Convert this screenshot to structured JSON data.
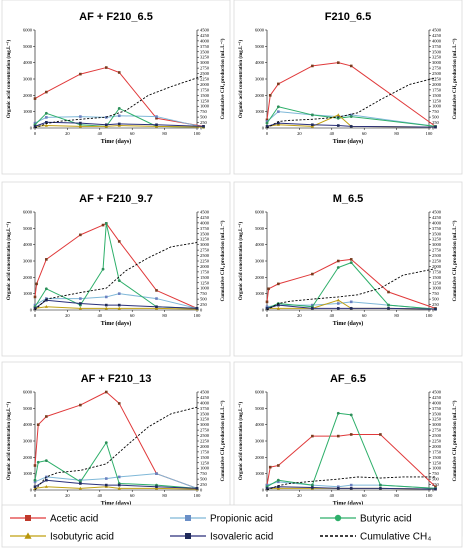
{
  "chart_data": [
    {
      "type": "line",
      "title": "AF + F210_6.5",
      "xlabel": "Time (days)",
      "ylabel": "Organic acid concentration (mg.L⁻¹)",
      "y2label": "Cumulative CH₄ production (mL.L⁻¹)",
      "xlim": [
        0,
        100
      ],
      "ylim": [
        0,
        6000
      ],
      "y2lim": [
        0,
        4500
      ],
      "xticks": [
        "0",
        "20",
        "40",
        "60",
        "80",
        "100"
      ],
      "yticks": [
        "0",
        "1000",
        "2000",
        "3000",
        "4000",
        "5000",
        "6000"
      ],
      "y2ticks": [
        "0",
        "250",
        "500",
        "750",
        "1000",
        "1250",
        "1500",
        "1750",
        "2000",
        "2250",
        "2500",
        "2750",
        "3000",
        "3250",
        "3500",
        "3750",
        "4000",
        "4250",
        "4500"
      ],
      "series": [
        {
          "name": "Acetic acid",
          "x": [
            0,
            7,
            28,
            44,
            52,
            75,
            104
          ],
          "y": [
            1800,
            2200,
            3300,
            3700,
            3400,
            600,
            100
          ]
        },
        {
          "name": "Propionic acid",
          "x": [
            0,
            7,
            28,
            44,
            52,
            75,
            104
          ],
          "y": [
            300,
            650,
            700,
            650,
            750,
            700,
            50
          ]
        },
        {
          "name": "Butyric acid",
          "x": [
            0,
            7,
            28,
            44,
            52,
            75,
            104
          ],
          "y": [
            200,
            900,
            200,
            100,
            1200,
            100,
            50
          ]
        },
        {
          "name": "Isobutyric acid",
          "x": [
            0,
            7,
            28,
            44,
            52,
            75,
            104
          ],
          "y": [
            100,
            150,
            100,
            100,
            150,
            100,
            50
          ]
        },
        {
          "name": "Isovaleric acid",
          "x": [
            0,
            7,
            28,
            44,
            52,
            75,
            104
          ],
          "y": [
            100,
            350,
            300,
            200,
            250,
            200,
            100
          ]
        },
        {
          "name": "Cumulative CH₄",
          "axis": "y2",
          "x": [
            0,
            7,
            14,
            28,
            44,
            56,
            70,
            84,
            104
          ],
          "y": [
            0,
            200,
            300,
            400,
            500,
            800,
            1500,
            1900,
            2400
          ]
        }
      ]
    },
    {
      "type": "line",
      "title": "F210_6.5",
      "xlabel": "Time (days)",
      "ylabel": "Organic acid concentration (mg.L⁻¹)",
      "y2label": "Cumulative CH₄ production (mL.L⁻¹)",
      "xlim": [
        0,
        100
      ],
      "ylim": [
        0,
        6000
      ],
      "y2lim": [
        0,
        4500
      ],
      "xticks": [
        "0",
        "20",
        "40",
        "60",
        "80",
        "100"
      ],
      "yticks": [
        "0",
        "1000",
        "2000",
        "3000",
        "4000",
        "5000",
        "6000"
      ],
      "y2ticks": [
        "0",
        "250",
        "500",
        "750",
        "1000",
        "1250",
        "1500",
        "1750",
        "2000",
        "2250",
        "2500",
        "2750",
        "3000",
        "3250",
        "3500",
        "3750",
        "4000",
        "4250",
        "4500"
      ],
      "series": [
        {
          "name": "Acetic acid",
          "x": [
            0,
            2,
            7,
            28,
            44,
            52,
            104
          ],
          "y": [
            500,
            2000,
            2700,
            3800,
            4000,
            3800,
            100
          ]
        },
        {
          "name": "Propionic acid",
          "x": [
            0,
            7,
            28,
            44,
            52,
            104
          ],
          "y": [
            400,
            1000,
            800,
            700,
            800,
            100
          ]
        },
        {
          "name": "Butyric acid",
          "x": [
            0,
            7,
            28,
            44,
            52,
            104
          ],
          "y": [
            300,
            1300,
            800,
            600,
            700,
            100
          ]
        },
        {
          "name": "Isobutyric acid",
          "x": [
            0,
            7,
            28,
            44,
            52,
            104
          ],
          "y": [
            100,
            200,
            100,
            800,
            100,
            50
          ]
        },
        {
          "name": "Isovaleric acid",
          "x": [
            0,
            7,
            28,
            44,
            52,
            104
          ],
          "y": [
            100,
            300,
            200,
            150,
            100,
            50
          ]
        },
        {
          "name": "Cumulative CH₄",
          "axis": "y2",
          "x": [
            0,
            7,
            14,
            28,
            44,
            56,
            70,
            88,
            104
          ],
          "y": [
            0,
            300,
            350,
            400,
            500,
            700,
            1300,
            2000,
            2300
          ]
        }
      ]
    },
    {
      "type": "line",
      "title": "AF + F210_9.7",
      "xlabel": "Time (days)",
      "ylabel": "Organic acid concentration (mg.L⁻¹)",
      "y2label": "Cumulative CH₄ production (mL.L⁻¹)",
      "xlim": [
        0,
        100
      ],
      "ylim": [
        0,
        6000
      ],
      "y2lim": [
        0,
        4500
      ],
      "xticks": [
        "0",
        "20",
        "40",
        "60",
        "80",
        "100"
      ],
      "yticks": [
        "0",
        "1000",
        "2000",
        "3000",
        "4000",
        "5000",
        "6000"
      ],
      "y2ticks": [
        "0",
        "250",
        "500",
        "750",
        "1000",
        "1250",
        "1500",
        "1750",
        "2000",
        "2250",
        "2500",
        "2750",
        "3000",
        "3250",
        "3500",
        "3750",
        "4000",
        "4250",
        "4500"
      ],
      "series": [
        {
          "name": "Acetic acid",
          "x": [
            0,
            1,
            7,
            28,
            42,
            44,
            52,
            75,
            100
          ],
          "y": [
            800,
            1600,
            3100,
            4600,
            5200,
            5300,
            4200,
            1200,
            100
          ]
        },
        {
          "name": "Propionic acid",
          "x": [
            0,
            7,
            28,
            44,
            52,
            75,
            100
          ],
          "y": [
            300,
            700,
            700,
            800,
            1000,
            700,
            100
          ]
        },
        {
          "name": "Butyric acid",
          "x": [
            0,
            7,
            28,
            42,
            44,
            52,
            75,
            100
          ],
          "y": [
            200,
            1300,
            300,
            2500,
            5300,
            1800,
            200,
            100
          ]
        },
        {
          "name": "Isobutyric acid",
          "x": [
            0,
            7,
            28,
            44,
            52,
            75,
            100
          ],
          "y": [
            100,
            200,
            100,
            100,
            100,
            100,
            50
          ]
        },
        {
          "name": "Isovaleric acid",
          "x": [
            0,
            7,
            28,
            44,
            52,
            75,
            100
          ],
          "y": [
            100,
            600,
            400,
            300,
            300,
            200,
            100
          ]
        },
        {
          "name": "Cumulative CH₄",
          "axis": "y2",
          "x": [
            0,
            7,
            14,
            28,
            44,
            56,
            70,
            84,
            100
          ],
          "y": [
            0,
            500,
            600,
            800,
            1000,
            1800,
            2400,
            2900,
            3100
          ]
        }
      ]
    },
    {
      "type": "line",
      "title": "M_6.5",
      "xlabel": "Time (days)",
      "ylabel": "Organic acid concentration (mg.L⁻¹)",
      "y2label": "Cumulative CH₄ production (mL.L⁻¹)",
      "xlim": [
        0,
        100
      ],
      "ylim": [
        0,
        6000
      ],
      "y2lim": [
        0,
        4500
      ],
      "xticks": [
        "0",
        "20",
        "40",
        "60",
        "80",
        "100"
      ],
      "yticks": [
        "0",
        "1000",
        "2000",
        "3000",
        "4000",
        "5000",
        "6000"
      ],
      "y2ticks": [
        "0",
        "250",
        "500",
        "750",
        "1000",
        "1250",
        "1500",
        "1750",
        "2000",
        "2250",
        "2500",
        "2750",
        "3000",
        "3250",
        "3500",
        "3750",
        "4000",
        "4250",
        "4500"
      ],
      "series": [
        {
          "name": "Acetic acid",
          "x": [
            0,
            1,
            7,
            28,
            44,
            52,
            75,
            104
          ],
          "y": [
            500,
            1300,
            1600,
            2200,
            3000,
            3100,
            1100,
            100
          ]
        },
        {
          "name": "Propionic acid",
          "x": [
            0,
            7,
            28,
            44,
            52,
            75,
            104
          ],
          "y": [
            200,
            300,
            300,
            400,
            500,
            300,
            50
          ]
        },
        {
          "name": "Butyric acid",
          "x": [
            0,
            7,
            28,
            44,
            52,
            75,
            104
          ],
          "y": [
            100,
            400,
            200,
            2600,
            2900,
            300,
            50
          ]
        },
        {
          "name": "Isobutyric acid",
          "x": [
            0,
            7,
            28,
            44,
            52,
            75,
            104
          ],
          "y": [
            100,
            100,
            100,
            600,
            100,
            100,
            50
          ]
        },
        {
          "name": "Isovaleric acid",
          "x": [
            0,
            7,
            28,
            44,
            52,
            75,
            104
          ],
          "y": [
            100,
            300,
            100,
            100,
            100,
            100,
            50
          ]
        },
        {
          "name": "Cumulative CH₄",
          "axis": "y2",
          "x": [
            0,
            7,
            14,
            28,
            44,
            56,
            70,
            84,
            104
          ],
          "y": [
            0,
            300,
            400,
            500,
            600,
            700,
            1000,
            1600,
            1900
          ]
        }
      ]
    },
    {
      "type": "line",
      "title": "AF + F210_13",
      "xlabel": "Time (days)",
      "ylabel": "Organic acid concentration (mg.L⁻¹)",
      "y2label": "Cumulative CH₄ production (mL.L⁻¹)",
      "xlim": [
        0,
        100
      ],
      "ylim": [
        0,
        6000
      ],
      "y2lim": [
        0,
        4500
      ],
      "xticks": [
        "0",
        "20",
        "40",
        "60",
        "80",
        "100"
      ],
      "yticks": [
        "0",
        "1000",
        "2000",
        "3000",
        "4000",
        "5000",
        "6000"
      ],
      "y2ticks": [
        "0",
        "250",
        "500",
        "750",
        "1000",
        "1250",
        "1500",
        "1750",
        "2000",
        "2250",
        "2500",
        "2750",
        "3000",
        "3250",
        "3500",
        "3750",
        "4000",
        "4250",
        "4500"
      ],
      "series": [
        {
          "name": "Acetic acid",
          "x": [
            0,
            2,
            7,
            28,
            44,
            52,
            75,
            100
          ],
          "y": [
            1500,
            4000,
            4500,
            5200,
            6000,
            5300,
            1000,
            100
          ]
        },
        {
          "name": "Propionic acid",
          "x": [
            0,
            7,
            28,
            44,
            52,
            75,
            100
          ],
          "y": [
            500,
            800,
            600,
            700,
            800,
            1000,
            100
          ]
        },
        {
          "name": "Butyric acid",
          "x": [
            0,
            2,
            7,
            28,
            44,
            52,
            75,
            100
          ],
          "y": [
            600,
            1700,
            1800,
            500,
            2900,
            400,
            300,
            100
          ]
        },
        {
          "name": "Isobutyric acid",
          "x": [
            0,
            7,
            28,
            44,
            52,
            75,
            100
          ],
          "y": [
            100,
            200,
            100,
            200,
            100,
            100,
            50
          ]
        },
        {
          "name": "Isovaleric acid",
          "x": [
            0,
            7,
            28,
            44,
            52,
            75,
            100
          ],
          "y": [
            200,
            600,
            400,
            300,
            300,
            200,
            100
          ]
        },
        {
          "name": "Cumulative CH₄",
          "axis": "y2",
          "x": [
            0,
            7,
            14,
            28,
            44,
            56,
            70,
            84,
            100
          ],
          "y": [
            0,
            600,
            800,
            900,
            1200,
            2000,
            2900,
            3500,
            3800
          ]
        }
      ]
    },
    {
      "type": "line",
      "title": "AF_6.5",
      "xlabel": "Time (days)",
      "ylabel": "Organic acid concentration (mg.L⁻¹)",
      "y2label": "Cumulative CH₄ production (mL.L⁻¹)",
      "xlim": [
        0,
        100
      ],
      "ylim": [
        0,
        6000
      ],
      "y2lim": [
        0,
        4500
      ],
      "xticks": [
        "0",
        "20",
        "40",
        "60",
        "80",
        "100"
      ],
      "yticks": [
        "0",
        "1000",
        "2000",
        "3000",
        "4000",
        "5000",
        "6000"
      ],
      "y2ticks": [
        "0",
        "250",
        "500",
        "750",
        "1000",
        "1250",
        "1500",
        "1750",
        "2000",
        "2250",
        "2500",
        "2750",
        "3000",
        "3250",
        "3500",
        "3750",
        "4000",
        "4250",
        "4500"
      ],
      "series": [
        {
          "name": "Acetic acid",
          "x": [
            0,
            2,
            7,
            28,
            44,
            52,
            70,
            104
          ],
          "y": [
            300,
            1400,
            1500,
            3300,
            3300,
            3400,
            3400,
            200
          ]
        },
        {
          "name": "Propionic acid",
          "x": [
            0,
            7,
            28,
            44,
            52,
            70,
            104
          ],
          "y": [
            300,
            500,
            300,
            200,
            300,
            300,
            100
          ]
        },
        {
          "name": "Butyric acid",
          "x": [
            0,
            7,
            28,
            44,
            52,
            70,
            104
          ],
          "y": [
            200,
            600,
            300,
            4700,
            4600,
            300,
            100
          ]
        },
        {
          "name": "Isobutyric acid",
          "x": [
            0,
            7,
            28,
            44,
            52,
            70,
            104
          ],
          "y": [
            100,
            100,
            100,
            100,
            100,
            100,
            50
          ]
        },
        {
          "name": "Isovaleric acid",
          "x": [
            0,
            7,
            28,
            44,
            52,
            70,
            104
          ],
          "y": [
            100,
            200,
            150,
            100,
            100,
            100,
            50
          ]
        },
        {
          "name": "Cumulative CH₄",
          "axis": "y2",
          "x": [
            0,
            7,
            14,
            28,
            44,
            56,
            70,
            84,
            104
          ],
          "y": [
            0,
            200,
            300,
            400,
            500,
            600,
            550,
            600,
            600
          ]
        }
      ]
    }
  ],
  "legend": {
    "items": [
      {
        "label": "Acetic acid",
        "color": "#c0392b",
        "marker": "square"
      },
      {
        "label": "Propionic acid",
        "color": "#6a8fc7",
        "marker": "square"
      },
      {
        "label": "Butyric acid",
        "color": "#2eaf6a",
        "marker": "circle"
      },
      {
        "label": "Isobutyric acid",
        "color": "#b8960b",
        "marker": "triangle"
      },
      {
        "label": "Isovaleric acid",
        "color": "#1f2a5a",
        "marker": "square"
      },
      {
        "label": "Cumulative CH₄",
        "color": "#000000",
        "marker": "dash"
      }
    ]
  },
  "colors": {
    "Acetic acid": {
      "line": "#e0393a",
      "marker": "#7a3b1e"
    },
    "Propionic acid": {
      "line": "#7fb8d8",
      "marker": "#6a7fc0"
    },
    "Butyric acid": {
      "line": "#2eaf6a",
      "marker": "#2e8f5a"
    },
    "Isobutyric acid": {
      "line": "#c0a012",
      "marker": "#b8960b"
    },
    "Isovaleric acid": {
      "line": "#2a2f7a",
      "marker": "#1f2a5a"
    },
    "Cumulative CH₄": {
      "line": "#000000",
      "marker": "#000000"
    }
  }
}
